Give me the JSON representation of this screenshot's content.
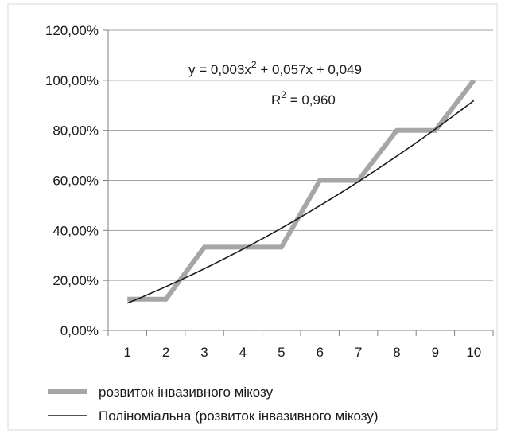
{
  "chart_data": {
    "type": "line",
    "x": [
      1,
      2,
      3,
      4,
      5,
      6,
      7,
      8,
      9,
      10
    ],
    "series": [
      {
        "name": "розвиток інвазивного мікозу",
        "values": [
          0.125,
          0.125,
          0.333,
          0.333,
          0.333,
          0.6,
          0.6,
          0.8,
          0.8,
          1.0
        ],
        "color": "#a6a6a6"
      },
      {
        "name": "Поліноміальна (розвиток інвазивного мікозу)",
        "kind": "polynomial-trendline",
        "coefficients": {
          "a": 0.003,
          "b": 0.057,
          "c": 0.049
        },
        "color": "#1a1a1a"
      }
    ],
    "y_ticks": [
      "0,00%",
      "20,00%",
      "40,00%",
      "60,00%",
      "80,00%",
      "100,00%",
      "120,00%"
    ],
    "x_ticks": [
      "1",
      "2",
      "3",
      "4",
      "5",
      "6",
      "7",
      "8",
      "9",
      "10"
    ],
    "ylim": [
      0,
      1.2
    ],
    "grid": true,
    "legend_position": "bottom",
    "annotation": {
      "equation_prefix": "y = 0,003x",
      "equation_exp": "2",
      "equation_suffix": " + 0,057x + 0,049",
      "r2_prefix": "R",
      "r2_exp": "2",
      "r2_suffix": " = 0,960"
    }
  }
}
